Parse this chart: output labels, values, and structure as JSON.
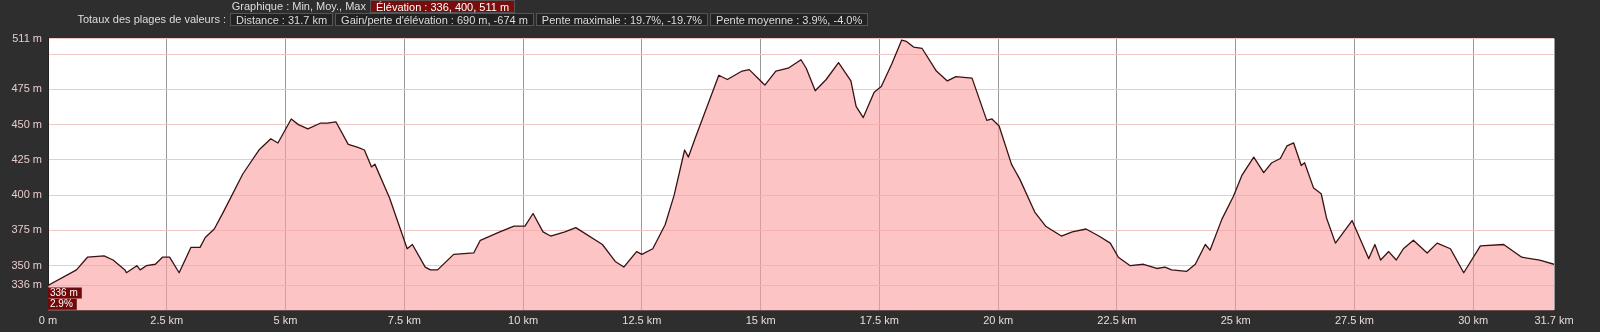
{
  "chart_data": {
    "type": "area",
    "title": "Graphique : Min, Moy., Max",
    "subtitle": "Élévation : 336, 400, 511 m",
    "annotations": [
      "Totaux des plages de valeurs :",
      "Distance : 31.7 km",
      "Gain/perte d'élévation : 690 m, -674 m",
      "Pente maximale : 19.7%, -19.7%",
      "Pente moyenne : 3.9%, -4.0%",
      {
        "text": "336 m",
        "x": 0,
        "y": 336
      },
      {
        "text": "2.9%",
        "x": 0
      }
    ],
    "x": [
      0,
      0.6,
      0.83,
      1.18,
      1.37,
      1.62,
      1.65,
      1.87,
      1.94,
      2.07,
      2.26,
      2.41,
      2.56,
      2.76,
      3.01,
      3.2,
      3.31,
      3.5,
      3.69,
      4.1,
      4.44,
      4.69,
      4.84,
      5.12,
      5.27,
      5.47,
      5.73,
      5.88,
      6.06,
      6.32,
      6.51,
      6.66,
      6.81,
      6.88,
      7.19,
      7.56,
      7.67,
      7.94,
      8.05,
      8.2,
      8.54,
      8.96,
      9.1,
      9.51,
      9.81,
      10.04,
      10.21,
      10.42,
      10.58,
      10.88,
      11.11,
      11.67,
      11.94,
      12.12,
      12.39,
      12.5,
      12.73,
      12.99,
      13.18,
      13.4,
      13.48,
      13.63,
      13.82,
      14.12,
      14.3,
      14.61,
      14.76,
      15.09,
      15.32,
      15.58,
      15.85,
      15.96,
      16.15,
      16.38,
      16.64,
      16.9,
      17.01,
      17.16,
      17.39,
      17.54,
      17.76,
      17.97,
      18.07,
      18.22,
      18.4,
      18.7,
      18.93,
      19.11,
      19.45,
      19.76,
      19.87,
      20.02,
      20.28,
      20.46,
      20.77,
      21.0,
      21.33,
      21.56,
      21.85,
      22.12,
      22.36,
      22.53,
      22.78,
      23.06,
      23.34,
      23.51,
      23.65,
      23.97,
      24.15,
      24.36,
      24.46,
      24.71,
      24.95,
      25.13,
      25.38,
      25.59,
      25.76,
      25.94,
      26.08,
      26.22,
      26.38,
      26.45,
      26.64,
      26.8,
      26.91,
      27.1,
      27.45,
      27.8,
      27.93,
      28.05,
      28.22,
      28.38,
      28.53,
      28.74,
      29.03,
      29.24,
      29.52,
      29.8,
      30.15,
      30.64,
      31.02,
      31.4,
      31.7
    ],
    "series": [
      {
        "color": "#3a1212",
        "values": [
          336,
          347,
          356,
          357,
          354,
          347,
          345,
          350,
          347,
          350,
          351,
          356,
          356,
          345,
          363,
          363,
          370,
          376,
          388,
          415,
          432,
          440,
          437,
          454,
          450,
          447,
          451,
          451,
          452,
          436,
          434,
          432,
          420,
          422,
          398,
          362,
          365,
          349,
          347,
          347,
          358,
          359,
          368,
          374,
          378,
          378,
          387,
          374,
          371,
          374,
          377,
          365,
          353,
          349,
          360,
          358,
          362,
          379,
          400,
          432,
          427,
          441,
          458,
          485,
          482,
          488,
          489,
          478,
          488,
          490,
          496,
          490,
          474,
          482,
          494,
          481,
          463,
          455,
          473,
          477,
          493,
          510,
          509,
          505,
          504,
          488,
          481,
          484,
          483,
          453,
          454,
          449,
          422,
          411,
          388,
          378,
          371,
          374,
          376,
          371,
          366,
          356,
          350,
          351,
          348,
          349,
          347,
          346,
          351,
          365,
          361,
          383,
          399,
          414,
          427,
          416,
          423,
          426,
          435,
          437,
          421,
          423,
          405,
          401,
          384,
          366,
          382,
          355,
          365,
          354,
          360,
          354,
          362,
          368,
          359,
          366,
          362,
          345,
          364,
          365,
          356,
          354,
          351
        ]
      }
    ],
    "xlim": [
      0,
      31.7
    ],
    "xticks": [
      {
        "value": 0,
        "label": "0 m"
      },
      {
        "value": 2.5,
        "label": "2.5 km"
      },
      {
        "value": 5,
        "label": "5 km"
      },
      {
        "value": 7.5,
        "label": "7.5 km"
      },
      {
        "value": 10,
        "label": "10 km"
      },
      {
        "value": 12.5,
        "label": "12.5 km"
      },
      {
        "value": 15,
        "label": "15 km"
      },
      {
        "value": 17.5,
        "label": "17.5 km"
      },
      {
        "value": 20,
        "label": "20 km"
      },
      {
        "value": 22.5,
        "label": "22.5 km"
      },
      {
        "value": 25,
        "label": "25 km"
      },
      {
        "value": 27.5,
        "label": "27.5 km"
      },
      {
        "value": 30,
        "label": "30 km"
      },
      {
        "value": 31.7,
        "label": "31.7 km"
      }
    ],
    "ylim": [
      318,
      511
    ],
    "yticks": [
      {
        "value": 336,
        "label": "336 m"
      },
      {
        "value": 350,
        "label": "350 m"
      },
      {
        "value": 375,
        "label": "375 m"
      },
      {
        "value": 400,
        "label": "400 m"
      },
      {
        "value": 425,
        "label": "425 m"
      },
      {
        "value": 450,
        "label": "450 m"
      },
      {
        "value": 475,
        "label": "475 m"
      },
      {
        "value": 500,
        "label": null
      },
      {
        "value": 511,
        "label": "511 m"
      }
    ],
    "grid": true,
    "legend": false,
    "marker": "none"
  }
}
